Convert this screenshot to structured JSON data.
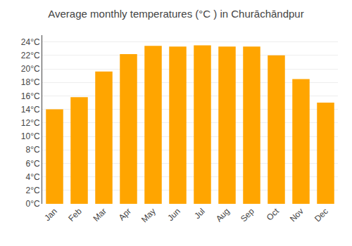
{
  "chart_data": {
    "type": "bar",
    "title": "Average monthly temperatures (°C ) in Churāchāndpur",
    "categories": [
      "Jan",
      "Feb",
      "Mar",
      "Apr",
      "May",
      "Jun",
      "Jul",
      "Aug",
      "Sep",
      "Oct",
      "Nov",
      "Dec"
    ],
    "values": [
      14.0,
      15.8,
      19.6,
      22.2,
      23.4,
      23.3,
      23.5,
      23.3,
      23.3,
      22.0,
      18.5,
      15.0
    ],
    "color": "#FFA500",
    "ylim": [
      0,
      25
    ],
    "yticks": [
      {
        "value": 0,
        "label": "0°C"
      },
      {
        "value": 2,
        "label": "2°C"
      },
      {
        "value": 4,
        "label": "4°C"
      },
      {
        "value": 6,
        "label": "6°C"
      },
      {
        "value": 8,
        "label": "8°C"
      },
      {
        "value": 10,
        "label": "10°C"
      },
      {
        "value": 12,
        "label": "12°C"
      },
      {
        "value": 14,
        "label": "14°C"
      },
      {
        "value": 16,
        "label": "16°C"
      },
      {
        "value": 18,
        "label": "18°C"
      },
      {
        "value": 20,
        "label": "20°C"
      },
      {
        "value": 22,
        "label": "22°C"
      },
      {
        "value": 24,
        "label": "24°C"
      }
    ],
    "grid": true
  }
}
